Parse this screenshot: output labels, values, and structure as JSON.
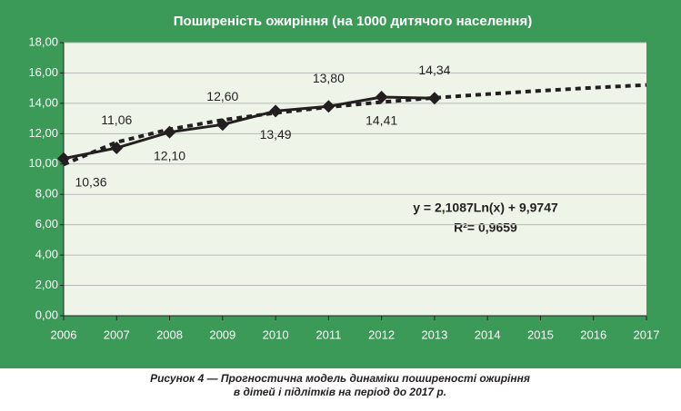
{
  "chart_data": {
    "type": "line",
    "title": "Поширеність ожиріння (на 1000 дитячого населення)",
    "x": [
      2006,
      2007,
      2008,
      2009,
      2010,
      2011,
      2012,
      2013,
      2014,
      2015,
      2016,
      2017
    ],
    "series": [
      {
        "color": "#231f20",
        "style": "solid",
        "markers": true,
        "values": [
          10.36,
          11.06,
          12.1,
          12.6,
          13.49,
          13.8,
          14.41,
          14.34,
          null,
          null,
          null,
          null
        ],
        "value_labels": [
          "10,36",
          "11,06",
          "12,10",
          "12,60",
          "13,49",
          "13,80",
          "14,41",
          "14,34",
          null,
          null,
          null,
          null
        ]
      },
      {
        "color": "#231f20",
        "style": "dotted",
        "markers": false,
        "values": [
          9.97,
          11.44,
          12.29,
          12.9,
          13.37,
          13.75,
          14.08,
          14.36,
          14.61,
          14.83,
          15.03,
          15.21
        ]
      }
    ],
    "xlim": [
      2006,
      2017
    ],
    "xticks": [
      2006,
      2007,
      2008,
      2009,
      2010,
      2011,
      2012,
      2013,
      2014,
      2015,
      2016,
      2017
    ],
    "ylim": [
      0,
      18
    ],
    "yticks": [
      {
        "value": 0,
        "label": "0,00"
      },
      {
        "value": 2,
        "label": "2,00"
      },
      {
        "value": 4,
        "label": "4,00"
      },
      {
        "value": 6,
        "label": "6,00"
      },
      {
        "value": 8,
        "label": "8,00"
      },
      {
        "value": 10,
        "label": "10,00"
      },
      {
        "value": 12,
        "label": "12,00"
      },
      {
        "value": 14,
        "label": "14,00"
      },
      {
        "value": 16,
        "label": "16,00"
      },
      {
        "value": 18,
        "label": "18,00"
      }
    ],
    "grid": true,
    "annotations": [
      "y = 2,1087Ln(x) + 9,9747",
      "R²= 0,9659"
    ],
    "caption": [
      "Рисунок 4 — Прогностична модель динаміки поширеності ожиріння",
      "в дітей і підлітків на період до 2017 р."
    ]
  }
}
